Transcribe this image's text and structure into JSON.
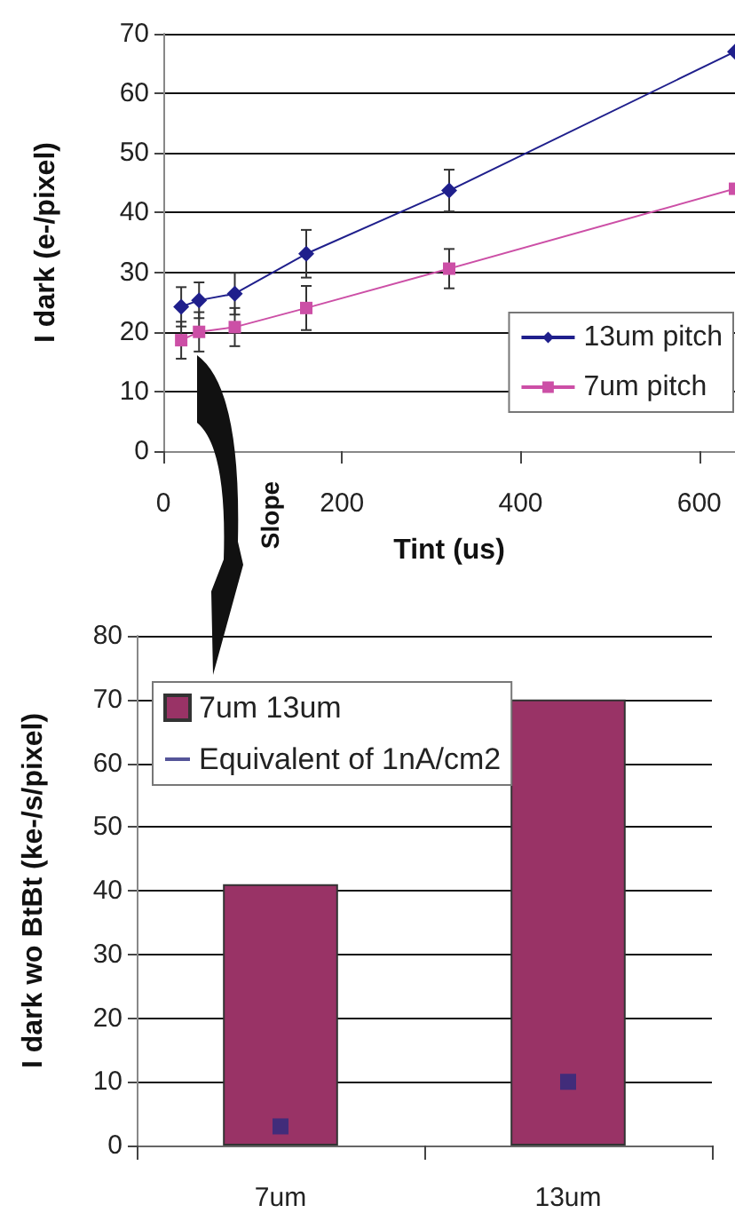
{
  "chart_data": [
    {
      "type": "line",
      "xlabel": "Tint (us)",
      "ylabel": "I dark (e-/pixel)",
      "x": [
        20,
        40,
        80,
        160,
        320,
        640
      ],
      "series": [
        {
          "name": "13um pitch",
          "color": "#1f1f8c",
          "marker": "diamond",
          "values": [
            24.2,
            25.3,
            26.4,
            33.1,
            43.7,
            67
          ],
          "errors": [
            3.3,
            3,
            3.5,
            4,
            3.5,
            null
          ]
        },
        {
          "name": "7um pitch",
          "color": "#cc4fa6",
          "marker": "square",
          "values": [
            18.6,
            20,
            20.8,
            24,
            30.6,
            44
          ],
          "errors": [
            3.1,
            3.3,
            3.2,
            3.7,
            3.3,
            null
          ]
        }
      ],
      "xlim": [
        0,
        640
      ],
      "xticks": [
        0,
        200,
        400,
        600
      ],
      "ylim": [
        0,
        70
      ],
      "yticks": [
        0,
        10,
        20,
        30,
        40,
        50,
        60,
        70
      ],
      "grid": "y",
      "legend": "right",
      "annotations": [
        "Slope"
      ]
    },
    {
      "type": "bar",
      "ylabel": "I dark wo BtBt (ke-/s/pixel)",
      "categories": [
        "7um",
        "13um"
      ],
      "series": [
        {
          "name": "7um 13um",
          "color": "#993366",
          "values": [
            41,
            70
          ]
        },
        {
          "name": "Equivalent of 1nA/cm2",
          "type": "scatter",
          "marker": "square",
          "color": "#2b2b80",
          "x": [
            "7um",
            "13um"
          ],
          "values": [
            3,
            10
          ]
        }
      ],
      "ylim": [
        0,
        80
      ],
      "yticks": [
        0,
        10,
        20,
        30,
        40,
        50,
        60,
        70,
        80
      ],
      "grid": "y",
      "legend": "top left"
    }
  ]
}
